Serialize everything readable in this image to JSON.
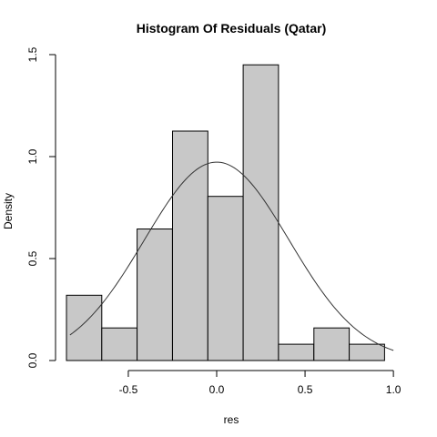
{
  "chart_data": {
    "type": "bar",
    "title": "Histogram Of Residuals (Qatar)",
    "xlabel": "res",
    "ylabel": "Density",
    "xlim": [
      -0.85,
      1.02
    ],
    "ylim": [
      0,
      1.5
    ],
    "x_ticks": [
      -0.5,
      0.0,
      0.5,
      1.0
    ],
    "x_tick_labels": [
      "-0.5",
      "0.0",
      "0.5",
      "1.0"
    ],
    "y_ticks": [
      0.0,
      0.5,
      1.0,
      1.5
    ],
    "y_tick_labels": [
      "0.0",
      "0.5",
      "1.0",
      "1.5"
    ],
    "bins": [
      {
        "x0": -0.85,
        "x1": -0.65,
        "density": 0.32
      },
      {
        "x0": -0.65,
        "x1": -0.45,
        "density": 0.16
      },
      {
        "x0": -0.45,
        "x1": -0.25,
        "density": 0.645
      },
      {
        "x0": -0.25,
        "x1": -0.05,
        "density": 1.125
      },
      {
        "x0": -0.05,
        "x1": 0.15,
        "density": 0.805
      },
      {
        "x0": 0.15,
        "x1": 0.35,
        "density": 1.45
      },
      {
        "x0": 0.35,
        "x1": 0.55,
        "density": 0.08
      },
      {
        "x0": 0.55,
        "x1": 0.75,
        "density": 0.16
      },
      {
        "x0": 0.75,
        "x1": 0.95,
        "density": 0.08
      }
    ],
    "normal_curve": {
      "mean": 0.0,
      "sd": 0.41,
      "from": -0.83,
      "to": 1.0
    },
    "grid": false,
    "colors": {
      "bar_fill": "#c8c8c8",
      "bar_stroke": "#000000",
      "curve": "#333333"
    }
  }
}
